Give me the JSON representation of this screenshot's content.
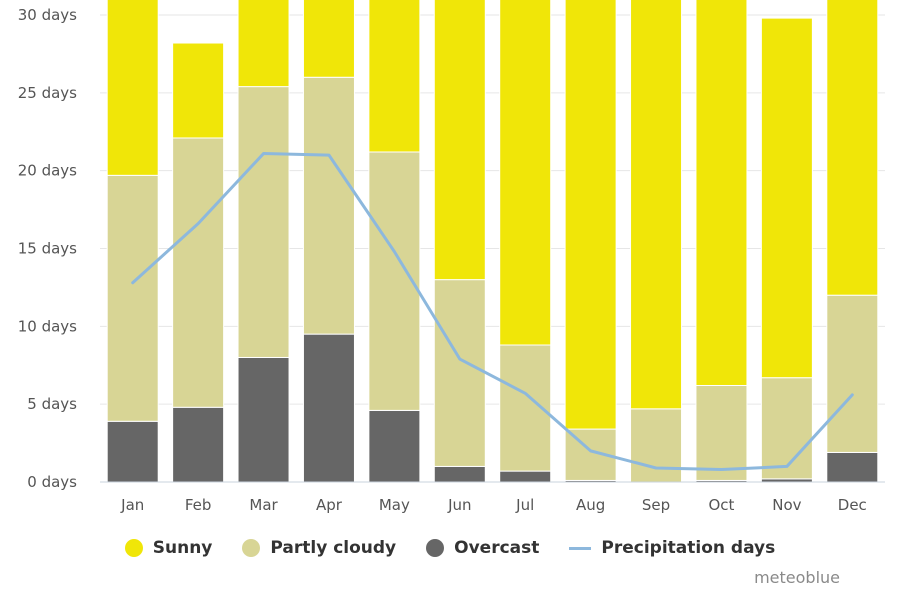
{
  "chart_data": {
    "type": "bar",
    "stacked": true,
    "categories": [
      "Jan",
      "Feb",
      "Mar",
      "Apr",
      "May",
      "Jun",
      "Jul",
      "Aug",
      "Sep",
      "Oct",
      "Nov",
      "Dec"
    ],
    "series": [
      {
        "name": "Overcast",
        "color": "#666666",
        "values": [
          3.9,
          4.8,
          8.0,
          9.5,
          4.6,
          1.0,
          0.7,
          0.1,
          0.0,
          0.1,
          0.2,
          1.9
        ]
      },
      {
        "name": "Partly cloudy",
        "color": "#d8d595",
        "values": [
          15.8,
          17.3,
          17.4,
          16.5,
          16.6,
          12.0,
          8.1,
          3.3,
          4.7,
          6.1,
          6.5,
          10.1
        ]
      },
      {
        "name": "Sunny",
        "color": "#f0e608",
        "values": [
          11.3,
          6.1,
          5.6,
          5.0,
          9.8,
          18.0,
          22.2,
          27.6,
          26.3,
          24.8,
          23.1,
          19.0
        ]
      }
    ],
    "line_series": {
      "name": "Precipitation days",
      "color": "#8db8dd",
      "values": [
        12.8,
        16.6,
        21.1,
        21.0,
        14.8,
        7.9,
        5.7,
        2.0,
        0.9,
        0.8,
        1.0,
        5.6
      ]
    },
    "y_ticks": [
      "0 days",
      "5 days",
      "10 days",
      "15 days",
      "20 days",
      "25 days",
      "30 days"
    ],
    "ylim": [
      0,
      30
    ],
    "grid": true,
    "legend_position": "bottom"
  },
  "legend": [
    {
      "label": "Sunny",
      "color": "#f0e608",
      "kind": "dot"
    },
    {
      "label": "Partly cloudy",
      "color": "#d8d595",
      "kind": "dot"
    },
    {
      "label": "Overcast",
      "color": "#666666",
      "kind": "dot"
    },
    {
      "label": "Precipitation days",
      "color": "#8db8dd",
      "kind": "line"
    }
  ],
  "credit": "meteoblue"
}
